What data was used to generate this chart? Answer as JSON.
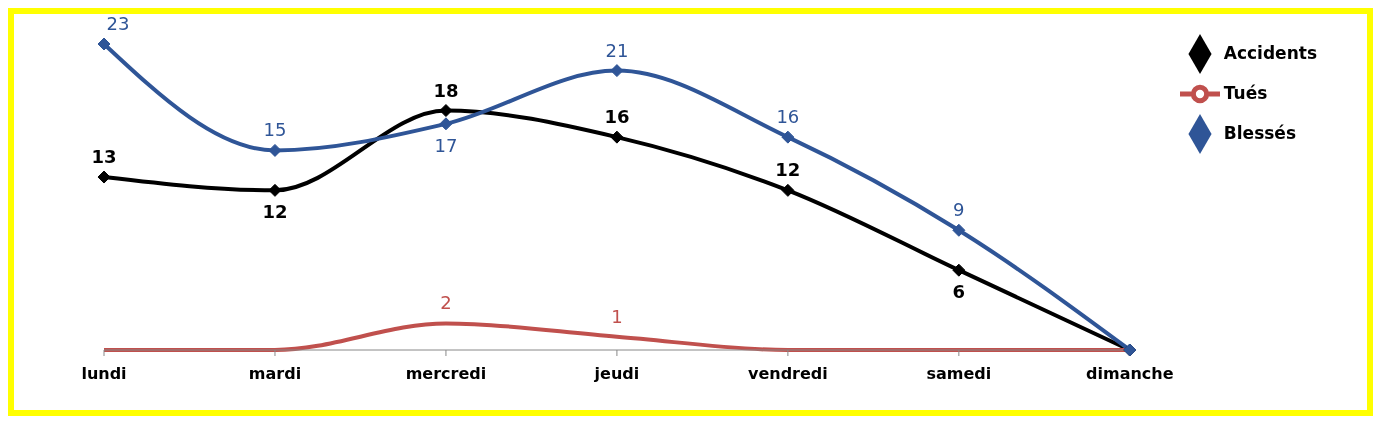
{
  "chart_data": {
    "type": "line",
    "categories": [
      "lundi",
      "mardi",
      "mercredi",
      "jeudi",
      "vendredi",
      "samedi",
      "dimanche"
    ],
    "series": [
      {
        "name": "Accidents",
        "color": "#000000",
        "marker": "diamond",
        "values": [
          13,
          12,
          18,
          16,
          12,
          6,
          0
        ],
        "value_labels": [
          "13",
          "12",
          "18",
          "16",
          "12",
          "6",
          null
        ]
      },
      {
        "name": "Tués",
        "color": "#c0504d",
        "marker": "none",
        "values": [
          0,
          0,
          2,
          1,
          0,
          0,
          0
        ],
        "value_labels": [
          null,
          null,
          "2",
          "1",
          null,
          null,
          null
        ]
      },
      {
        "name": "Blessés",
        "color": "#2f5597",
        "marker": "diamond",
        "values": [
          23,
          15,
          17,
          21,
          16,
          9,
          0
        ],
        "value_labels": [
          "23",
          "15",
          "17",
          "21",
          "16",
          "9",
          null
        ]
      }
    ],
    "legend": "top right",
    "tick_labels": "x"
  }
}
